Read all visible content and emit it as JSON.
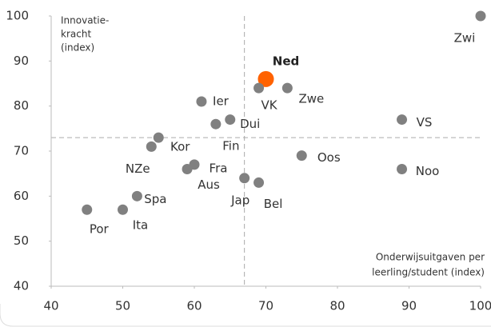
{
  "chart_data": {
    "type": "scatter",
    "ylabel": [
      "Innovatie-",
      "kracht",
      "(index)"
    ],
    "xlabel": [
      "Onderwijsuitgaven per",
      "leerling/student (index)"
    ],
    "xlim": [
      40,
      100
    ],
    "xticks": [
      40,
      50,
      60,
      70,
      80,
      90,
      100
    ],
    "ylim": [
      40,
      100
    ],
    "yticks": [
      40,
      50,
      60,
      70,
      80,
      90,
      100
    ],
    "vline": 67,
    "hline": 73,
    "points": [
      {
        "label": "Zwi",
        "x": 100,
        "y": 100,
        "color": "#808080"
      },
      {
        "label": "Ned",
        "x": 70,
        "y": 86,
        "color": "#ff6200"
      },
      {
        "label": "VK",
        "x": 69,
        "y": 84,
        "color": "#808080"
      },
      {
        "label": "Zwe",
        "x": 73,
        "y": 84,
        "color": "#808080"
      },
      {
        "label": "Ier",
        "x": 61,
        "y": 81,
        "color": "#808080"
      },
      {
        "label": "Dui",
        "x": 65,
        "y": 77,
        "color": "#808080"
      },
      {
        "label": "Fin",
        "x": 63,
        "y": 76,
        "color": "#808080"
      },
      {
        "label": "Kor",
        "x": 55,
        "y": 73,
        "color": "#808080"
      },
      {
        "label": "NZe",
        "x": 54,
        "y": 71,
        "color": "#808080"
      },
      {
        "label": "VS",
        "x": 89,
        "y": 77,
        "color": "#808080"
      },
      {
        "label": "Oos",
        "x": 75,
        "y": 69,
        "color": "#808080"
      },
      {
        "label": "Noo",
        "x": 89,
        "y": 66,
        "color": "#808080"
      },
      {
        "label": "Fra",
        "x": 60,
        "y": 67,
        "color": "#808080"
      },
      {
        "label": "Aus",
        "x": 59,
        "y": 66,
        "color": "#808080"
      },
      {
        "label": "Jap",
        "x": 67,
        "y": 64,
        "color": "#808080"
      },
      {
        "label": "Bel",
        "x": 69,
        "y": 63,
        "color": "#808080"
      },
      {
        "label": "Spa",
        "x": 52,
        "y": 60,
        "color": "#808080"
      },
      {
        "label": "Ita",
        "x": 50,
        "y": 57,
        "color": "#808080"
      },
      {
        "label": "Por",
        "x": 45,
        "y": 57,
        "color": "#808080"
      }
    ]
  }
}
